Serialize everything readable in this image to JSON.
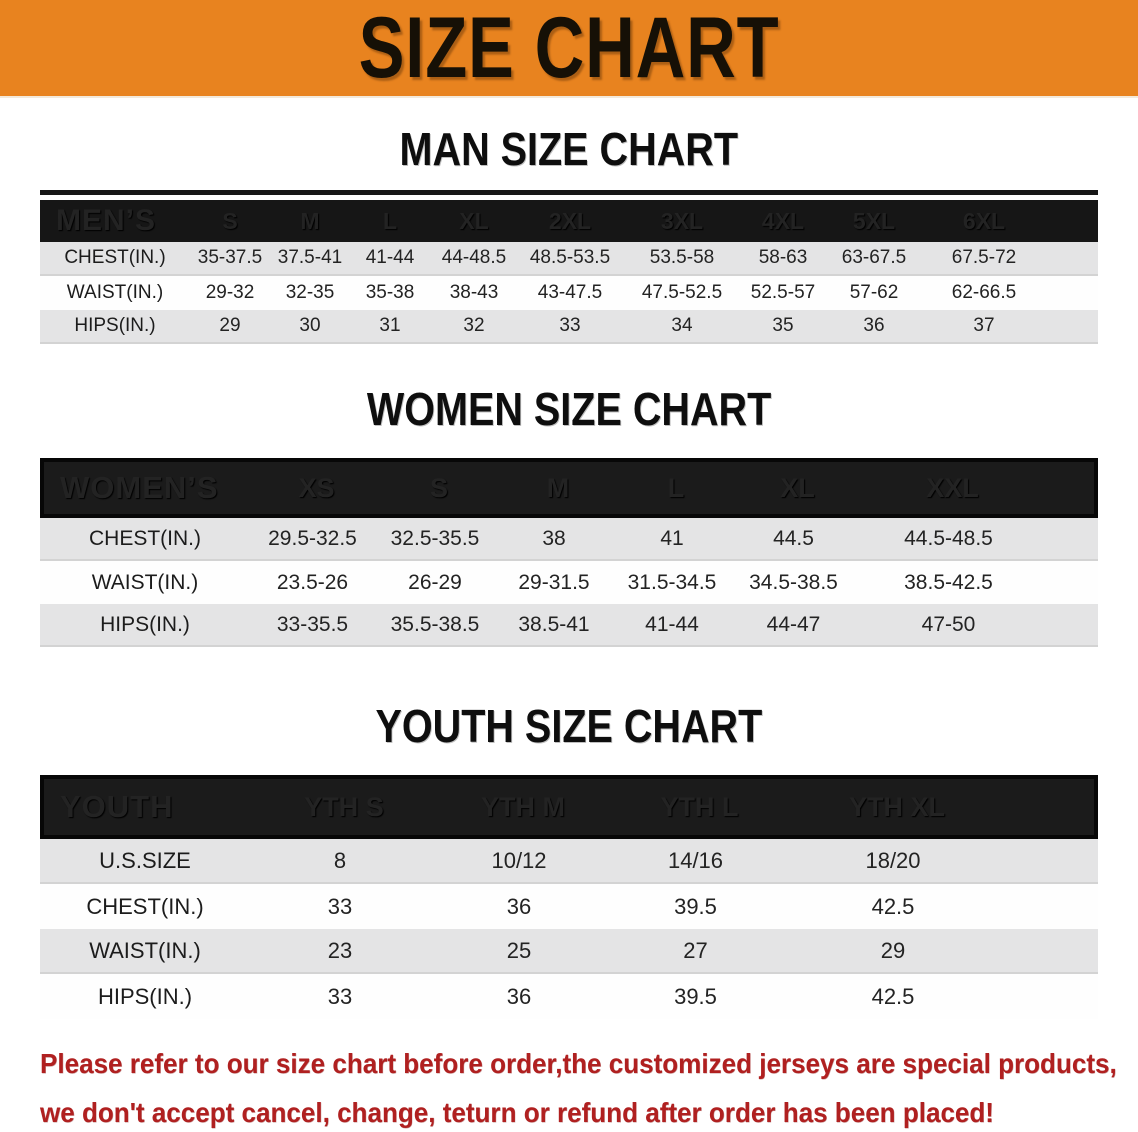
{
  "banner": {
    "title": "SIZE CHART",
    "bg_color": "#e8831f"
  },
  "men": {
    "heading": "MAN SIZE CHART",
    "header_label": "MEN’S",
    "columns": [
      "S",
      "M",
      "L",
      "XL",
      "2XL",
      "3XL",
      "4XL",
      "5XL",
      "6XL"
    ],
    "rows": [
      {
        "label": "CHEST(IN.)",
        "values": [
          "35-37.5",
          "37.5-41",
          "41-44",
          "44-48.5",
          "48.5-53.5",
          "53.5-58",
          "58-63",
          "63-67.5",
          "67.5-72"
        ]
      },
      {
        "label": "WAIST(IN.)",
        "values": [
          "29-32",
          "32-35",
          "35-38",
          "38-43",
          "43-47.5",
          "47.5-52.5",
          "52.5-57",
          "57-62",
          "62-66.5"
        ]
      },
      {
        "label": "HIPS(IN.)",
        "values": [
          "29",
          "30",
          "31",
          "32",
          "33",
          "34",
          "35",
          "36",
          "37"
        ]
      }
    ]
  },
  "women": {
    "heading": "WOMEN SIZE CHART",
    "header_label": "WOMEN’S",
    "columns": [
      "XS",
      "S",
      "M",
      "L",
      "XL",
      "XXL"
    ],
    "rows": [
      {
        "label": "CHEST(IN.)",
        "values": [
          "29.5-32.5",
          "32.5-35.5",
          "38",
          "41",
          "44.5",
          "44.5-48.5"
        ]
      },
      {
        "label": "WAIST(IN.)",
        "values": [
          "23.5-26",
          "26-29",
          "29-31.5",
          "31.5-34.5",
          "34.5-38.5",
          "38.5-42.5"
        ]
      },
      {
        "label": "HIPS(IN.)",
        "values": [
          "33-35.5",
          "35.5-38.5",
          "38.5-41",
          "41-44",
          "44-47",
          "47-50"
        ]
      }
    ]
  },
  "youth": {
    "heading": "YOUTH SIZE CHART",
    "header_label": "YOUTH",
    "columns": [
      "YTH S",
      "YTH M",
      "YTH L",
      "YTH XL"
    ],
    "rows": [
      {
        "label": "U.S.SIZE",
        "values": [
          "8",
          "10/12",
          "14/16",
          "18/20"
        ]
      },
      {
        "label": "CHEST(IN.)",
        "values": [
          "33",
          "36",
          "39.5",
          "42.5"
        ]
      },
      {
        "label": "WAIST(IN.)",
        "values": [
          "23",
          "25",
          "27",
          "29"
        ]
      },
      {
        "label": "HIPS(IN.)",
        "values": [
          "33",
          "36",
          "39.5",
          "42.5"
        ]
      }
    ]
  },
  "disclaimer": {
    "line1": "Please refer to our size chart before order,the customized jerseys are special products,",
    "line2": "we don't accept cancel, change, teturn or refund after order has been placed!",
    "color": "#b02020"
  }
}
